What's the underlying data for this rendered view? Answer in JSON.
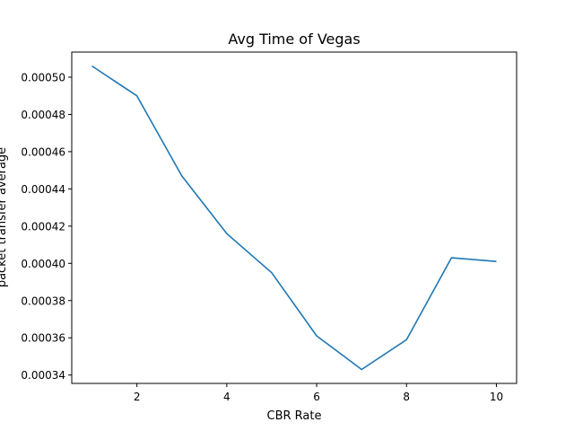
{
  "chart_data": {
    "type": "line",
    "title": "Avg Time of Vegas",
    "xlabel": "CBR Rate",
    "ylabel": "packet transfer average",
    "xlim": [
      0.55,
      10.45
    ],
    "ylim": [
      0.0003355,
      0.0005135
    ],
    "xticks": [
      2,
      4,
      6,
      8,
      10
    ],
    "xtick_labels": [
      "2",
      "4",
      "6",
      "8",
      "10"
    ],
    "yticks": [
      0.00034,
      0.00036,
      0.00038,
      0.0004,
      0.00042,
      0.00044,
      0.00046,
      0.00048,
      0.0005
    ],
    "ytick_labels": [
      "0.00034",
      "0.00036",
      "0.00038",
      "0.00040",
      "0.00042",
      "0.00044",
      "0.00046",
      "0.00048",
      "0.00050"
    ],
    "grid": false,
    "series": [
      {
        "color": "#1f77b4",
        "x": [
          1,
          2,
          3,
          4,
          5,
          6,
          7,
          8,
          9,
          10
        ],
        "y": [
          0.000506,
          0.00049,
          0.000447,
          0.000416,
          0.000395,
          0.000361,
          0.000343,
          0.000359,
          0.000403,
          0.000401
        ]
      }
    ]
  }
}
